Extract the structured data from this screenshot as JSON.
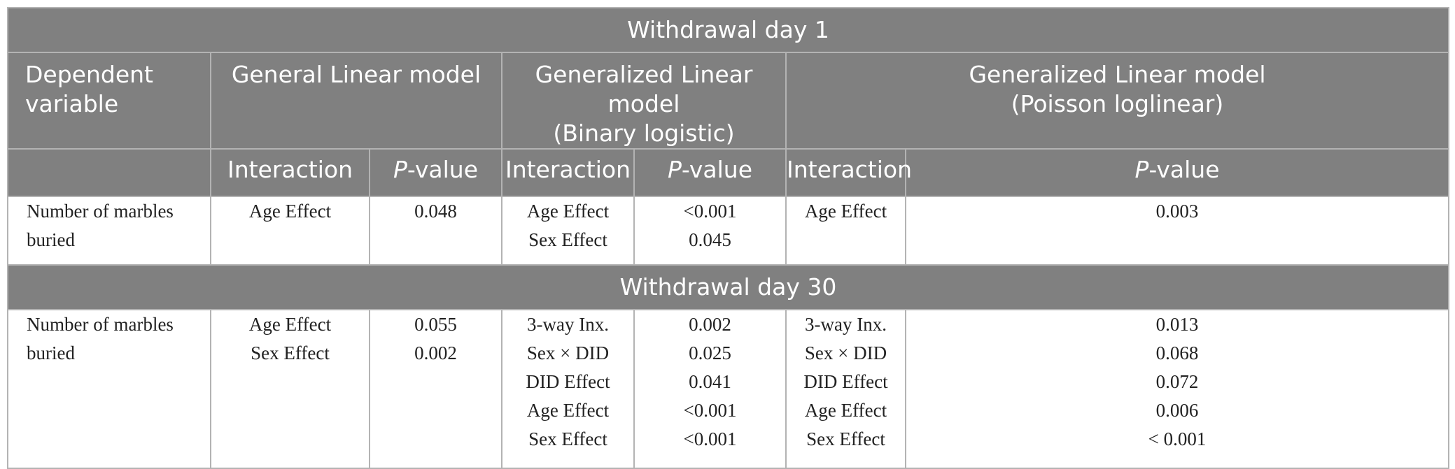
{
  "sections": [
    {
      "title": "Withdrawal day 1",
      "row": {
        "dependent": "Number of marbles buried",
        "general_linear": {
          "interactions": [
            "Age Effect"
          ],
          "pvalues": [
            "0.048"
          ]
        },
        "binary_logistic": {
          "interactions": [
            "Age Effect",
            "Sex Effect"
          ],
          "pvalues": [
            "<0.001",
            "0.045"
          ]
        },
        "poisson_loglinear": {
          "interactions": [
            "Age Effect"
          ],
          "pvalues": [
            "0.003"
          ]
        }
      }
    },
    {
      "title": "Withdrawal day 30",
      "row": {
        "dependent": "Number of marbles buried",
        "general_linear": {
          "interactions": [
            "Age Effect",
            "Sex Effect"
          ],
          "pvalues": [
            "0.055",
            "0.002"
          ]
        },
        "binary_logistic": {
          "interactions": [
            "3-way Inx.",
            "Sex × DID",
            "DID Effect",
            "Age Effect",
            "Sex Effect"
          ],
          "pvalues": [
            "0.002",
            "0.025",
            "0.041",
            "<0.001",
            "<0.001"
          ]
        },
        "poisson_loglinear": {
          "interactions": [
            "3-way Inx.",
            "Sex × DID",
            "DID Effect",
            "Age Effect",
            "Sex Effect"
          ],
          "pvalues": [
            "0.013",
            "0.068",
            "0.072",
            "0.006",
            "< 0.001"
          ]
        }
      }
    }
  ],
  "headers": {
    "dependent_line1": "Dependent",
    "dependent_line2": "variable",
    "general_linear": "General Linear model",
    "binary_logistic_line1": "Generalized Linear model",
    "binary_logistic_line2": "(Binary logistic)",
    "poisson_line1": "Generalized Linear model",
    "poisson_line2": "(Poisson loglinear)",
    "interaction": "Interaction",
    "p_letter": "P",
    "p_suffix": "-value"
  }
}
